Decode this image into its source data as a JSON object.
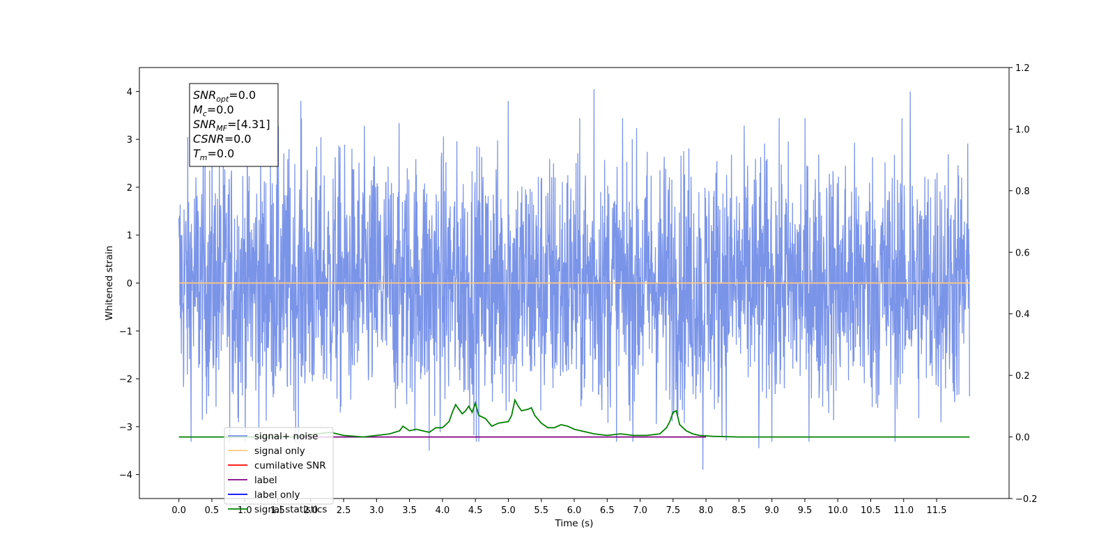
{
  "chart_data": {
    "type": "line",
    "xlabel": "Time (s)",
    "ylabel": "Whitened strain",
    "xlim": [
      -0.6,
      12.6
    ],
    "ylim": [
      -4.5,
      4.5
    ],
    "y2lim": [
      -0.2,
      1.2
    ],
    "x_ticks": [
      0.0,
      0.5,
      1.0,
      1.5,
      2.0,
      2.5,
      3.0,
      3.5,
      4.0,
      4.5,
      5.0,
      5.5,
      6.0,
      6.5,
      7.0,
      7.5,
      8.0,
      8.5,
      9.0,
      9.5,
      10.0,
      10.5,
      11.0,
      11.5
    ],
    "x_tick_labels": [
      "0.0",
      "0.5",
      "1.0",
      "1.5",
      "2.0",
      "2.5",
      "3.0",
      "3.5",
      "4.0",
      "4.5",
      "5.0",
      "5.5",
      "6.0",
      "6.5",
      "7.0",
      "7.5",
      "8.0",
      "8.5",
      "9.0",
      "9.5",
      "10.0",
      "10.5",
      "11.0",
      "11.5"
    ],
    "y_ticks": [
      -4,
      -3,
      -2,
      -1,
      0,
      1,
      2,
      3,
      4
    ],
    "y_tick_labels": [
      "−4",
      "−3",
      "−2",
      "−1",
      "0",
      "1",
      "2",
      "3",
      "4"
    ],
    "y2_ticks": [
      -0.2,
      0.0,
      0.2,
      0.4,
      0.6,
      0.8,
      1.0,
      1.2
    ],
    "y2_tick_labels": [
      "−0.2",
      "0.0",
      "0.2",
      "0.4",
      "0.6",
      "0.8",
      "1.0",
      "1.2"
    ],
    "grid": false,
    "legend_position": "lower-left",
    "noise_envelope": {
      "x_range": [
        0.0,
        12.0
      ],
      "typical_range": [
        -2.0,
        2.0
      ],
      "peak_max": 4.05,
      "peak_min": -3.9,
      "notable_peaks": [
        {
          "x": 1.85,
          "y": 3.8
        },
        {
          "x": 5.0,
          "y": 3.8
        },
        {
          "x": 6.3,
          "y": 4.05
        },
        {
          "x": 11.1,
          "y": 4.0
        },
        {
          "x": 7.95,
          "y": -3.9
        },
        {
          "x": 3.8,
          "y": -3.5
        },
        {
          "x": 8.8,
          "y": -3.45
        }
      ]
    },
    "series": [
      {
        "name": "signal+ noise",
        "axis": "left",
        "color": "#7a94e8",
        "kind": "noise"
      },
      {
        "name": "signal only",
        "axis": "left",
        "color": "#ffc880",
        "x": [
          0.0,
          12.0
        ],
        "y": [
          0.0,
          0.0
        ]
      },
      {
        "name": "cumilative SNR",
        "axis": "right",
        "color": "#ff0000",
        "x": [],
        "y": []
      },
      {
        "name": "label",
        "axis": "right",
        "color": "#800080",
        "x": [
          0.8,
          8.0
        ],
        "y": [
          0.0,
          0.0
        ]
      },
      {
        "name": "label only",
        "axis": "right",
        "color": "#0000ff",
        "x": [],
        "y": []
      },
      {
        "name": "signal statistics",
        "axis": "right",
        "color": "#008000",
        "x": [
          0.0,
          1.8,
          2.1,
          2.3,
          2.5,
          2.8,
          3.0,
          3.2,
          3.35,
          3.4,
          3.5,
          3.6,
          3.7,
          3.8,
          3.9,
          4.0,
          4.1,
          4.15,
          4.2,
          4.25,
          4.3,
          4.35,
          4.4,
          4.45,
          4.5,
          4.55,
          4.65,
          4.75,
          4.85,
          5.0,
          5.05,
          5.1,
          5.15,
          5.2,
          5.3,
          5.35,
          5.4,
          5.5,
          5.6,
          5.7,
          5.8,
          5.9,
          6.0,
          6.1,
          6.2,
          6.3,
          6.5,
          6.7,
          6.9,
          7.1,
          7.3,
          7.4,
          7.45,
          7.5,
          7.55,
          7.6,
          7.7,
          7.8,
          7.9,
          8.1,
          8.5,
          9.0,
          12.0
        ],
        "y": [
          0.0,
          0.0,
          0.01,
          0.015,
          0.005,
          0.0,
          0.005,
          0.01,
          0.02,
          0.035,
          0.02,
          0.025,
          0.02,
          0.015,
          0.03,
          0.03,
          0.05,
          0.08,
          0.105,
          0.09,
          0.075,
          0.085,
          0.1,
          0.08,
          0.11,
          0.07,
          0.06,
          0.035,
          0.045,
          0.05,
          0.07,
          0.12,
          0.1,
          0.085,
          0.09,
          0.095,
          0.07,
          0.045,
          0.03,
          0.03,
          0.04,
          0.035,
          0.025,
          0.02,
          0.015,
          0.01,
          0.005,
          0.01,
          0.005,
          0.005,
          0.01,
          0.03,
          0.05,
          0.08,
          0.085,
          0.04,
          0.02,
          0.01,
          0.005,
          0.002,
          0.0,
          0.0,
          0.0
        ]
      }
    ],
    "stats_box": {
      "lines": [
        {
          "main": "SNR",
          "sub": "opt",
          "value": "=0.0"
        },
        {
          "main": "M",
          "sub": "c",
          "value": "=0.0"
        },
        {
          "main": "SNR",
          "sub": "MF",
          "value": "=[4.31]"
        },
        {
          "main": "CSNR",
          "sub": "",
          "value": "=0.0"
        },
        {
          "main": "T",
          "sub": "m",
          "value": "=0.0"
        }
      ]
    }
  }
}
